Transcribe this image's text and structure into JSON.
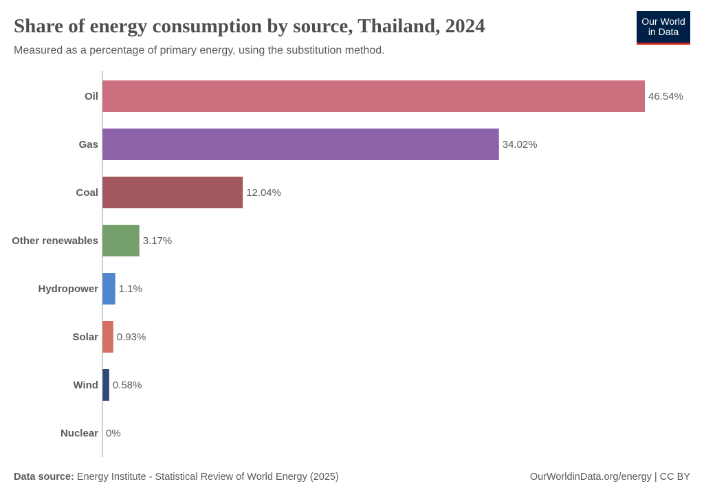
{
  "header": {
    "title": "Share of energy consumption by source, Thailand, 2024",
    "subtitle": "Measured as a percentage of primary energy, using the substitution method.",
    "logo_text_line1": "Our World",
    "logo_text_line2": "in Data"
  },
  "footer": {
    "source_label": "Data source:",
    "source_text": "Energy Institute - Statistical Review of World Energy (2025)",
    "credit": "OurWorldinData.org/energy | CC BY"
  },
  "chart_data": {
    "type": "bar",
    "orientation": "horizontal",
    "title": "Share of energy consumption by source, Thailand, 2024",
    "subtitle": "Measured as a percentage of primary energy, using the substitution method.",
    "categories": [
      "Oil",
      "Gas",
      "Coal",
      "Other renewables",
      "Hydropower",
      "Solar",
      "Wind",
      "Nuclear"
    ],
    "values": [
      46.54,
      34.02,
      12.04,
      3.17,
      1.1,
      0.93,
      0.58,
      0
    ],
    "labels": [
      "46.54%",
      "34.02%",
      "12.04%",
      "3.17%",
      "1.1%",
      "0.93%",
      "0.58%",
      "0%"
    ],
    "colors": [
      "#cc6f7e",
      "#8c62a8",
      "#a2585e",
      "#76a06b",
      "#5086cd",
      "#d56f63",
      "#2f4b78",
      "#999999"
    ],
    "xlim": [
      0,
      46.54
    ],
    "grid": false,
    "legend": "none"
  }
}
